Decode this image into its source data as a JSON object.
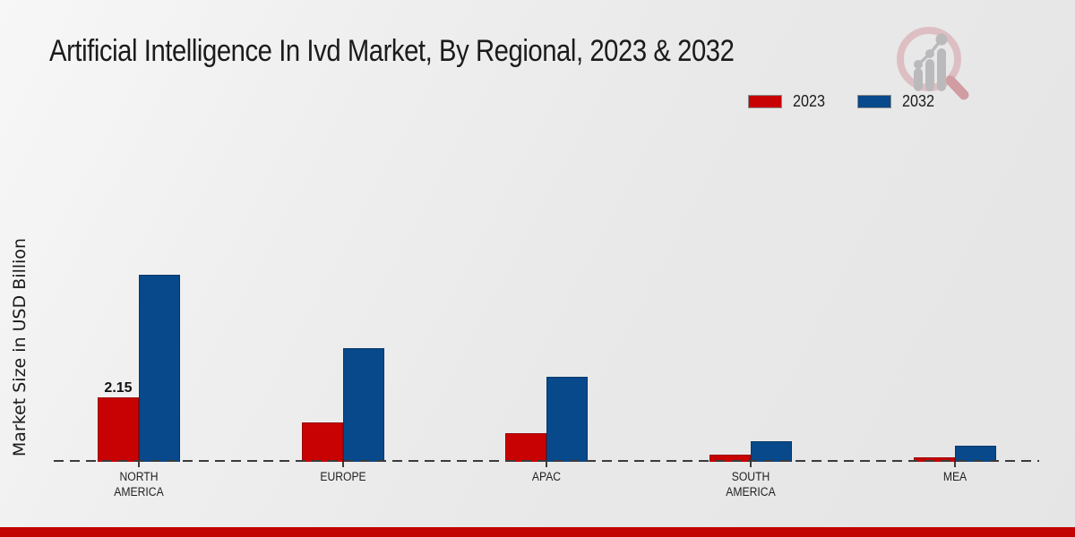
{
  "title": "Artificial Intelligence In Ivd Market, By Regional, 2023 & 2032",
  "ylabel": "Market Size in USD Billion",
  "legend": [
    {
      "label": "2023",
      "color": "#c80202",
      "border": "#9a0101"
    },
    {
      "label": "2032",
      "color": "#07498a",
      "border": "#05386b"
    }
  ],
  "footer_color": "#c20404",
  "logo_icon": "magnifier-bar-chart-logo",
  "chart_data": {
    "type": "bar",
    "title": "Artificial Intelligence In Ivd Market, By Regional, 2023 & 2032",
    "xlabel": "",
    "ylabel": "Market Size in USD Billion",
    "categories": [
      "NORTH AMERICA",
      "EUROPE",
      "APAC",
      "SOUTH AMERICA",
      "MEA"
    ],
    "x_tick_lines": [
      [
        "NORTH",
        "AMERICA"
      ],
      [
        "EUROPE"
      ],
      [
        "APAC"
      ],
      [
        "SOUTH",
        "AMERICA"
      ],
      [
        "MEA"
      ]
    ],
    "series": [
      {
        "name": "2023",
        "color": "#c80202",
        "border": "#9a0101",
        "values": [
          2.15,
          1.3,
          0.95,
          0.25,
          0.15
        ]
      },
      {
        "name": "2032",
        "color": "#07498a",
        "border": "#05386b",
        "values": [
          6.24,
          3.8,
          2.85,
          0.7,
          0.55
        ]
      }
    ],
    "bar_labels": [
      "2.15",
      "",
      "",
      "",
      ""
    ],
    "ylim": [
      0,
      7
    ],
    "grid": false,
    "legend_position": "top-right",
    "baseline_style": "dashed"
  }
}
